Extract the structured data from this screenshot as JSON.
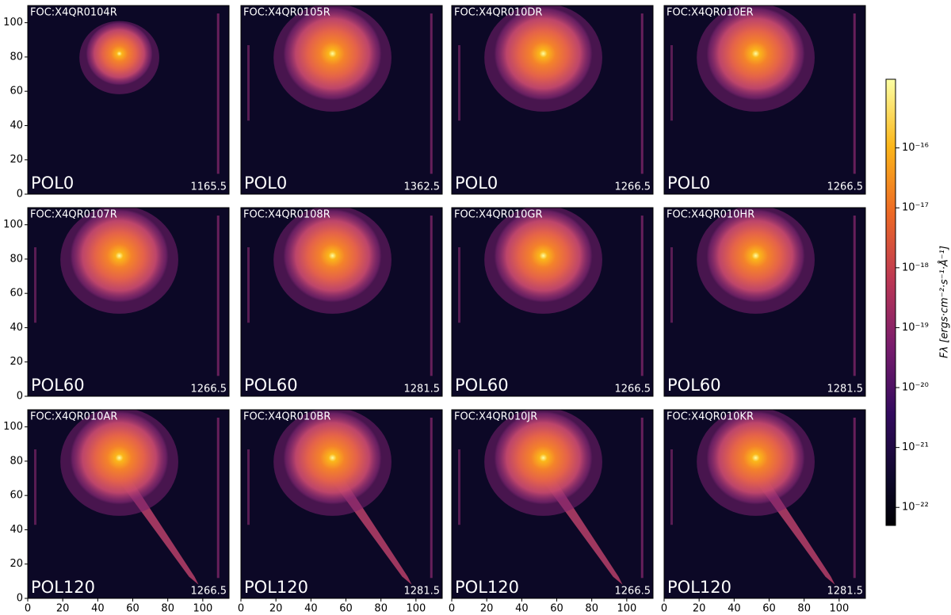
{
  "chart_data": {
    "type": "image-grid",
    "columns": 4,
    "xlim": [
      0,
      115
    ],
    "ylim": [
      0,
      110
    ],
    "xticks": [
      0,
      20,
      40,
      60,
      80,
      100
    ],
    "yticks": [
      0,
      20,
      40,
      60,
      80,
      100
    ],
    "panels": [
      {
        "title": "FOC:X4QR0104R",
        "filter": "POL0",
        "exptime": 1165.5
      },
      {
        "title": "FOC:X4QR0105R",
        "filter": "POL0",
        "exptime": 1362.5
      },
      {
        "title": "FOC:X4QR010DR",
        "filter": "POL0",
        "exptime": 1266.5
      },
      {
        "title": "FOC:X4QR010ER",
        "filter": "POL0",
        "exptime": 1266.5
      },
      {
        "title": "FOC:X4QR0107R",
        "filter": "POL60",
        "exptime": 1266.5
      },
      {
        "title": "FOC:X4QR0108R",
        "filter": "POL60",
        "exptime": 1281.5
      },
      {
        "title": "FOC:X4QR010GR",
        "filter": "POL60",
        "exptime": 1266.5
      },
      {
        "title": "FOC:X4QR010HR",
        "filter": "POL60",
        "exptime": 1281.5
      },
      {
        "title": "FOC:X4QR010AR",
        "filter": "POL120",
        "exptime": 1266.5
      },
      {
        "title": "FOC:X4QR010BR",
        "filter": "POL120",
        "exptime": 1281.5
      },
      {
        "title": "FOC:X4QR010JR",
        "filter": "POL120",
        "exptime": 1266.5
      },
      {
        "title": "FOC:X4QR010KR",
        "filter": "POL120",
        "exptime": 1281.5
      }
    ],
    "colorbar": {
      "label": "Fλ [ergs·cm⁻²·s⁻¹·Å⁻¹]",
      "log": true,
      "lim": [
        5e-23,
        1.4e-15
      ],
      "ticks": [
        {
          "value": 1e-22,
          "label": "10⁻²²"
        },
        {
          "value": 1e-21,
          "label": "10⁻²¹"
        },
        {
          "value": 1e-20,
          "label": "10⁻²⁰"
        },
        {
          "value": 1e-19,
          "label": "10⁻¹⁹"
        },
        {
          "value": 1e-18,
          "label": "10⁻¹⁸"
        },
        {
          "value": 1e-17,
          "label": "10⁻¹⁷"
        },
        {
          "value": 1e-16,
          "label": "10⁻¹⁶"
        }
      ]
    }
  }
}
